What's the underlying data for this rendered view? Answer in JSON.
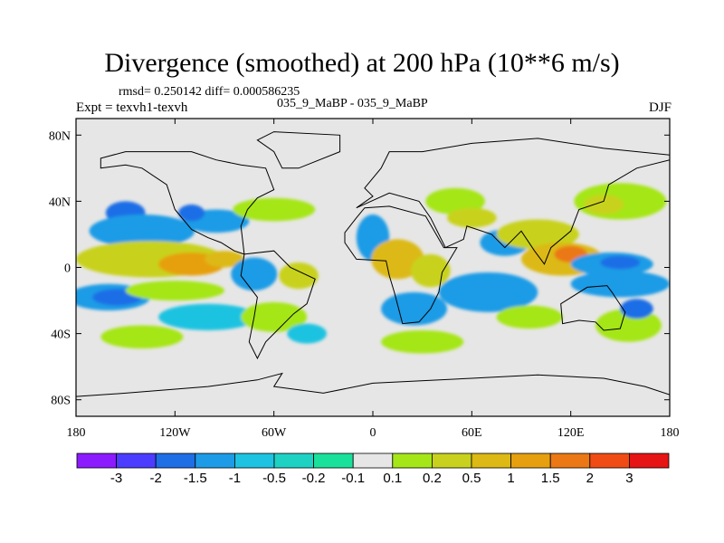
{
  "header": {
    "title": "Divergence (smoothed) at 200 hPa (10**6 m/s)",
    "stats": "rmsd= 0.250142 diff= 0.000586235",
    "expt": "Expt = texvh1-texvh",
    "runs": "035_9_MaBP - 035_9_MaBP",
    "season": "DJF"
  },
  "chart_data": {
    "type": "heatmap",
    "title": "Divergence (smoothed) at 200 hPa (10**6 m/s)",
    "xlabel": "",
    "ylabel": "",
    "xlim": [
      -180,
      180
    ],
    "ylim": [
      -90,
      90
    ],
    "x_ticks": [
      {
        "value": -180,
        "label": "180"
      },
      {
        "value": -120,
        "label": "120W"
      },
      {
        "value": -60,
        "label": "60W"
      },
      {
        "value": 0,
        "label": "0"
      },
      {
        "value": 60,
        "label": "60E"
      },
      {
        "value": 120,
        "label": "120E"
      },
      {
        "value": 180,
        "label": "180"
      }
    ],
    "y_ticks": [
      {
        "value": 80,
        "label": "80N"
      },
      {
        "value": 40,
        "label": "40N"
      },
      {
        "value": 0,
        "label": "0"
      },
      {
        "value": -40,
        "label": "40S"
      },
      {
        "value": -80,
        "label": "80S"
      }
    ],
    "colorbar": {
      "levels": [
        {
          "label": "-3",
          "color": "#8c1aff"
        },
        {
          "label": "-2",
          "color": "#4b3cff"
        },
        {
          "label": "-1.5",
          "color": "#1e6ee6"
        },
        {
          "label": "-1",
          "color": "#1e9be6"
        },
        {
          "label": "-0.5",
          "color": "#1ec3e1"
        },
        {
          "label": "-0.2",
          "color": "#1ed2c3"
        },
        {
          "label": "-0.1",
          "color": "#19e19b"
        },
        {
          "label": "0.1",
          "color": "#e6e6e6"
        },
        {
          "label": "0.2",
          "color": "#a5e619"
        },
        {
          "label": "0.5",
          "color": "#c8d21e"
        },
        {
          "label": "1",
          "color": "#dcb914"
        },
        {
          "label": "1.5",
          "color": "#e6a00f"
        },
        {
          "label": "2",
          "color": "#eb7814"
        },
        {
          "label": "3",
          "color": "#f04b14"
        }
      ],
      "over_color": "#e61414"
    },
    "background_color": "#e6e6e6",
    "features": [
      {
        "lon": -150,
        "lat": 33,
        "rx": 12,
        "ry": 7,
        "value": -1
      },
      {
        "lon": -140,
        "lat": 22,
        "rx": 32,
        "ry": 10,
        "value": -0.5
      },
      {
        "lon": -95,
        "lat": 28,
        "rx": 20,
        "ry": 7,
        "value": -0.5
      },
      {
        "lon": -110,
        "lat": 33,
        "rx": 8,
        "ry": 5,
        "value": -1
      },
      {
        "lon": -60,
        "lat": 35,
        "rx": 25,
        "ry": 7,
        "value": 0.2
      },
      {
        "lon": -135,
        "lat": 5,
        "rx": 45,
        "ry": 11,
        "value": 0.5
      },
      {
        "lon": -110,
        "lat": 2,
        "rx": 20,
        "ry": 7,
        "value": 1.5
      },
      {
        "lon": -90,
        "lat": 5,
        "rx": 12,
        "ry": 5,
        "value": 1
      },
      {
        "lon": -72,
        "lat": -4,
        "rx": 14,
        "ry": 10,
        "value": -0.5
      },
      {
        "lon": -45,
        "lat": -5,
        "rx": 12,
        "ry": 8,
        "value": 0.5
      },
      {
        "lon": -160,
        "lat": -18,
        "rx": 25,
        "ry": 8,
        "value": -0.5
      },
      {
        "lon": -155,
        "lat": -18,
        "rx": 15,
        "ry": 5,
        "value": -1
      },
      {
        "lon": -120,
        "lat": -14,
        "rx": 30,
        "ry": 6,
        "value": 0.2
      },
      {
        "lon": -100,
        "lat": -30,
        "rx": 30,
        "ry": 8,
        "value": -0.2
      },
      {
        "lon": -60,
        "lat": -30,
        "rx": 20,
        "ry": 9,
        "value": 0.2
      },
      {
        "lon": -140,
        "lat": -42,
        "rx": 25,
        "ry": 7,
        "value": 0.2
      },
      {
        "lon": -40,
        "lat": -40,
        "rx": 12,
        "ry": 6,
        "value": -0.2
      },
      {
        "lon": 0,
        "lat": 18,
        "rx": 10,
        "ry": 14,
        "value": -0.5
      },
      {
        "lon": 15,
        "lat": 5,
        "rx": 16,
        "ry": 12,
        "value": 1
      },
      {
        "lon": 35,
        "lat": -2,
        "rx": 12,
        "ry": 10,
        "value": 0.5
      },
      {
        "lon": 50,
        "lat": 40,
        "rx": 18,
        "ry": 8,
        "value": 0.2
      },
      {
        "lon": 60,
        "lat": 30,
        "rx": 15,
        "ry": 6,
        "value": 0.5
      },
      {
        "lon": 25,
        "lat": -25,
        "rx": 20,
        "ry": 10,
        "value": -0.5
      },
      {
        "lon": 70,
        "lat": -15,
        "rx": 30,
        "ry": 12,
        "value": -0.5
      },
      {
        "lon": 80,
        "lat": 15,
        "rx": 15,
        "ry": 8,
        "value": -0.5
      },
      {
        "lon": 30,
        "lat": -45,
        "rx": 25,
        "ry": 7,
        "value": 0.2
      },
      {
        "lon": 100,
        "lat": 20,
        "rx": 25,
        "ry": 9,
        "value": 0.5
      },
      {
        "lon": 115,
        "lat": 5,
        "rx": 25,
        "ry": 10,
        "value": 1
      },
      {
        "lon": 120,
        "lat": 8,
        "rx": 10,
        "ry": 5,
        "value": 2
      },
      {
        "lon": 145,
        "lat": 2,
        "rx": 25,
        "ry": 7,
        "value": -0.5
      },
      {
        "lon": 150,
        "lat": 3,
        "rx": 12,
        "ry": 4,
        "value": -1
      },
      {
        "lon": 150,
        "lat": 40,
        "rx": 28,
        "ry": 11,
        "value": 0.2
      },
      {
        "lon": 140,
        "lat": 38,
        "rx": 12,
        "ry": 6,
        "value": 0.5
      },
      {
        "lon": 150,
        "lat": -10,
        "rx": 30,
        "ry": 8,
        "value": -0.5
      },
      {
        "lon": 155,
        "lat": -35,
        "rx": 20,
        "ry": 10,
        "value": 0.2
      },
      {
        "lon": 160,
        "lat": -25,
        "rx": 10,
        "ry": 6,
        "value": -1
      },
      {
        "lon": 95,
        "lat": -30,
        "rx": 20,
        "ry": 7,
        "value": 0.2
      }
    ],
    "coastlines": [
      {
        "name": "north-america",
        "points": [
          [
            -165,
            60
          ],
          [
            -150,
            62
          ],
          [
            -140,
            60
          ],
          [
            -125,
            50
          ],
          [
            -120,
            35
          ],
          [
            -110,
            23
          ],
          [
            -100,
            18
          ],
          [
            -92,
            15
          ],
          [
            -84,
            10
          ],
          [
            -78,
            8
          ],
          [
            -80,
            25
          ],
          [
            -76,
            35
          ],
          [
            -70,
            42
          ],
          [
            -60,
            47
          ],
          [
            -65,
            60
          ],
          [
            -80,
            62
          ],
          [
            -95,
            65
          ],
          [
            -110,
            70
          ],
          [
            -130,
            70
          ],
          [
            -150,
            70
          ],
          [
            -165,
            66
          ]
        ]
      },
      {
        "name": "south-america",
        "points": [
          [
            -78,
            8
          ],
          [
            -60,
            10
          ],
          [
            -50,
            0
          ],
          [
            -35,
            -7
          ],
          [
            -40,
            -22
          ],
          [
            -48,
            -28
          ],
          [
            -58,
            -38
          ],
          [
            -65,
            -45
          ],
          [
            -70,
            -55
          ],
          [
            -75,
            -45
          ],
          [
            -72,
            -30
          ],
          [
            -70,
            -18
          ],
          [
            -80,
            -5
          ]
        ]
      },
      {
        "name": "africa",
        "points": [
          [
            -17,
            15
          ],
          [
            -10,
            5
          ],
          [
            8,
            4
          ],
          [
            10,
            -5
          ],
          [
            13,
            -15
          ],
          [
            18,
            -34
          ],
          [
            28,
            -33
          ],
          [
            35,
            -25
          ],
          [
            40,
            -15
          ],
          [
            42,
            -3
          ],
          [
            51,
            12
          ],
          [
            43,
            12
          ],
          [
            32,
            31
          ],
          [
            10,
            37
          ],
          [
            -5,
            36
          ],
          [
            -10,
            30
          ],
          [
            -17,
            21
          ]
        ]
      },
      {
        "name": "eurasia",
        "points": [
          [
            -10,
            36
          ],
          [
            0,
            43
          ],
          [
            -5,
            48
          ],
          [
            5,
            60
          ],
          [
            10,
            70
          ],
          [
            30,
            70
          ],
          [
            60,
            75
          ],
          [
            100,
            78
          ],
          [
            140,
            72
          ],
          [
            180,
            68
          ],
          [
            180,
            65
          ],
          [
            160,
            60
          ],
          [
            143,
            50
          ],
          [
            140,
            40
          ],
          [
            125,
            35
          ],
          [
            120,
            22
          ],
          [
            108,
            12
          ],
          [
            104,
            2
          ],
          [
            98,
            10
          ],
          [
            90,
            22
          ],
          [
            80,
            12
          ],
          [
            72,
            20
          ],
          [
            57,
            25
          ],
          [
            55,
            17
          ],
          [
            44,
            12
          ],
          [
            35,
            30
          ],
          [
            28,
            40
          ],
          [
            10,
            45
          ]
        ]
      },
      {
        "name": "australia",
        "points": [
          [
            114,
            -22
          ],
          [
            130,
            -12
          ],
          [
            142,
            -11
          ],
          [
            145,
            -15
          ],
          [
            153,
            -27
          ],
          [
            150,
            -37
          ],
          [
            140,
            -38
          ],
          [
            135,
            -33
          ],
          [
            125,
            -32
          ],
          [
            115,
            -34
          ]
        ]
      },
      {
        "name": "greenland",
        "points": [
          [
            -55,
            60
          ],
          [
            -45,
            60
          ],
          [
            -20,
            70
          ],
          [
            -20,
            80
          ],
          [
            -60,
            82
          ],
          [
            -70,
            77
          ],
          [
            -60,
            70
          ]
        ]
      },
      {
        "name": "antarctica",
        "points": [
          [
            -180,
            -78
          ],
          [
            -150,
            -76
          ],
          [
            -100,
            -72
          ],
          [
            -70,
            -68
          ],
          [
            -55,
            -64
          ],
          [
            -60,
            -72
          ],
          [
            -30,
            -76
          ],
          [
            0,
            -70
          ],
          [
            60,
            -67
          ],
          [
            100,
            -65
          ],
          [
            140,
            -67
          ],
          [
            165,
            -72
          ],
          [
            180,
            -77
          ],
          [
            180,
            -90
          ],
          [
            -180,
            -90
          ]
        ]
      }
    ]
  }
}
